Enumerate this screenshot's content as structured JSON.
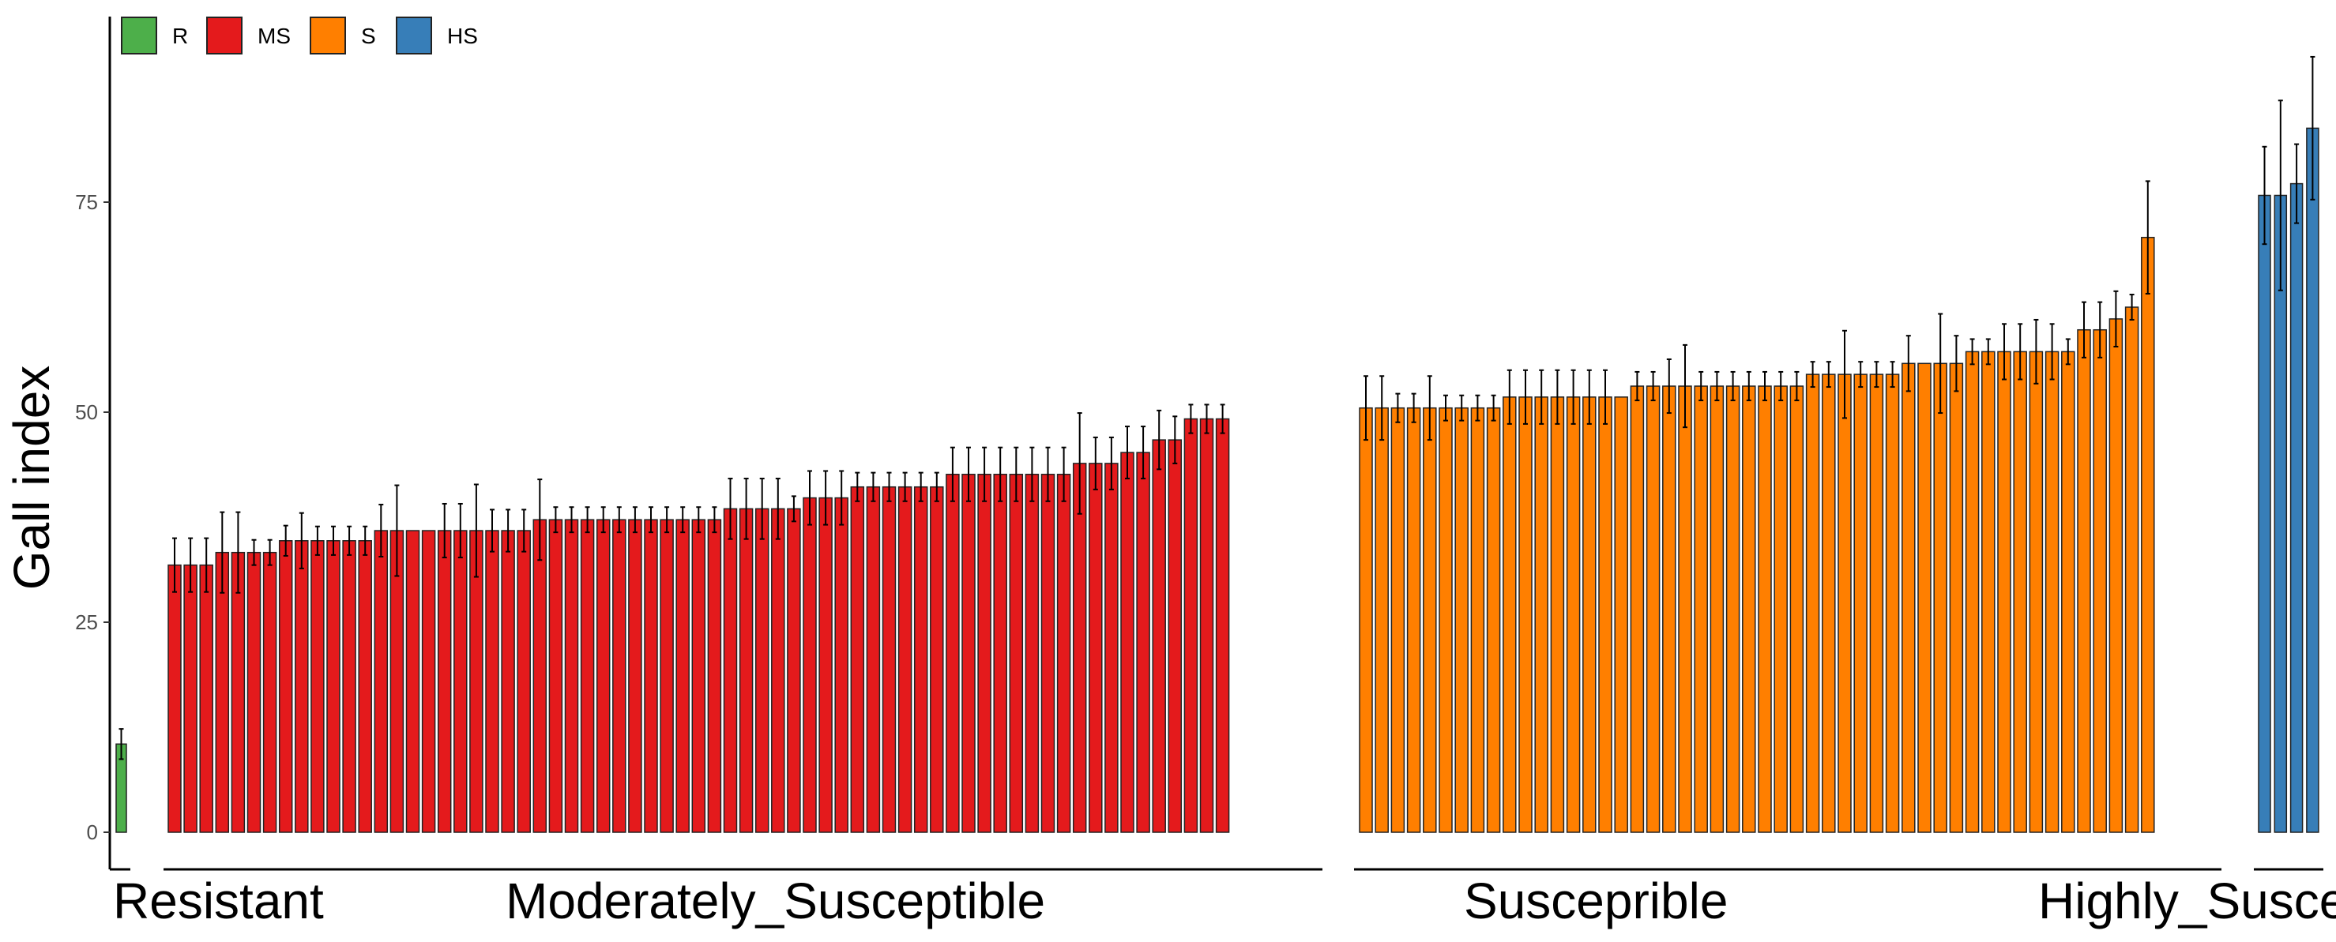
{
  "chart_data": {
    "type": "bar",
    "ylabel": "Gall index",
    "xlabel": "",
    "ylim": [
      0,
      95
    ],
    "yticks": [
      0,
      25,
      50,
      75
    ],
    "grid": false,
    "legend_position": "top-left",
    "legend": [
      {
        "key": "R",
        "label": "R",
        "color": "#4daf4a"
      },
      {
        "key": "MS",
        "label": "MS",
        "color": "#e41a1c"
      },
      {
        "key": "S",
        "label": "S",
        "color": "#ff7f00"
      },
      {
        "key": "HS",
        "label": "HS",
        "color": "#377eb8"
      }
    ],
    "groups": [
      {
        "key": "R",
        "label": "Resistant",
        "values": [
          10.5
        ],
        "errors": [
          1.8
        ]
      },
      {
        "key": "MS",
        "label": "Moderately_Susceptible",
        "values": [
          31.8,
          31.8,
          31.8,
          33.3,
          33.3,
          33.3,
          33.3,
          34.7,
          34.7,
          34.7,
          34.7,
          34.7,
          34.7,
          35.9,
          35.9,
          35.9,
          35.9,
          35.9,
          35.9,
          35.9,
          35.9,
          35.9,
          35.9,
          37.2,
          37.2,
          37.2,
          37.2,
          37.2,
          37.2,
          37.2,
          37.2,
          37.2,
          37.2,
          37.2,
          37.2,
          38.5,
          38.5,
          38.5,
          38.5,
          38.5,
          39.8,
          39.8,
          39.8,
          41.1,
          41.1,
          41.1,
          41.1,
          41.1,
          41.1,
          42.6,
          42.6,
          42.6,
          42.6,
          42.6,
          42.6,
          42.6,
          42.6,
          43.9,
          43.9,
          43.9,
          45.2,
          45.2,
          46.7,
          46.7,
          49.2,
          49.2,
          49.2
        ],
        "errors": [
          3.2,
          3.2,
          3.2,
          4.8,
          4.8,
          1.5,
          1.5,
          1.8,
          3.3,
          1.7,
          1.7,
          1.7,
          1.7,
          3.1,
          5.4,
          0,
          0,
          3.2,
          3.2,
          5.5,
          2.5,
          2.5,
          2.5,
          4.8,
          1.5,
          1.5,
          1.5,
          1.5,
          1.5,
          1.5,
          1.5,
          1.5,
          1.5,
          1.5,
          1.5,
          3.6,
          3.6,
          3.6,
          3.6,
          1.5,
          3.2,
          3.2,
          3.2,
          1.7,
          1.7,
          1.7,
          1.7,
          1.7,
          1.7,
          3.2,
          3.2,
          3.2,
          3.2,
          3.2,
          3.2,
          3.2,
          3.2,
          6.0,
          3.1,
          3.1,
          3.1,
          3.1,
          3.5,
          2.8,
          1.7,
          1.7,
          1.7
        ]
      },
      {
        "key": "S",
        "label": "Susceprible",
        "values": [
          50.5,
          50.5,
          50.5,
          50.5,
          50.5,
          50.5,
          50.5,
          50.5,
          50.5,
          51.8,
          51.8,
          51.8,
          51.8,
          51.8,
          51.8,
          51.8,
          51.8,
          53.1,
          53.1,
          53.1,
          53.1,
          53.1,
          53.1,
          53.1,
          53.1,
          53.1,
          53.1,
          53.1,
          54.5,
          54.5,
          54.5,
          54.5,
          54.5,
          54.5,
          55.8,
          55.8,
          55.8,
          55.8,
          57.2,
          57.2,
          57.2,
          57.2,
          57.2,
          57.2,
          57.2,
          59.8,
          59.8,
          61.1,
          62.5,
          70.8
        ],
        "errors": [
          3.8,
          3.8,
          1.7,
          1.7,
          3.8,
          1.5,
          1.5,
          1.5,
          1.5,
          3.2,
          3.2,
          3.2,
          3.2,
          3.2,
          3.2,
          3.2,
          0,
          1.7,
          1.7,
          3.2,
          4.9,
          1.7,
          1.7,
          1.7,
          1.7,
          1.7,
          1.7,
          1.7,
          1.5,
          1.5,
          5.2,
          1.5,
          1.5,
          1.5,
          3.3,
          0,
          5.9,
          3.3,
          1.5,
          1.5,
          3.3,
          3.3,
          3.8,
          3.3,
          1.5,
          3.3,
          3.3,
          3.3,
          1.5,
          6.7
        ]
      },
      {
        "key": "HS",
        "label": "Highly_Susceptible",
        "values": [
          75.8,
          75.8,
          77.2,
          83.8
        ],
        "errors": [
          5.8,
          11.3,
          4.7,
          8.5
        ]
      }
    ]
  }
}
